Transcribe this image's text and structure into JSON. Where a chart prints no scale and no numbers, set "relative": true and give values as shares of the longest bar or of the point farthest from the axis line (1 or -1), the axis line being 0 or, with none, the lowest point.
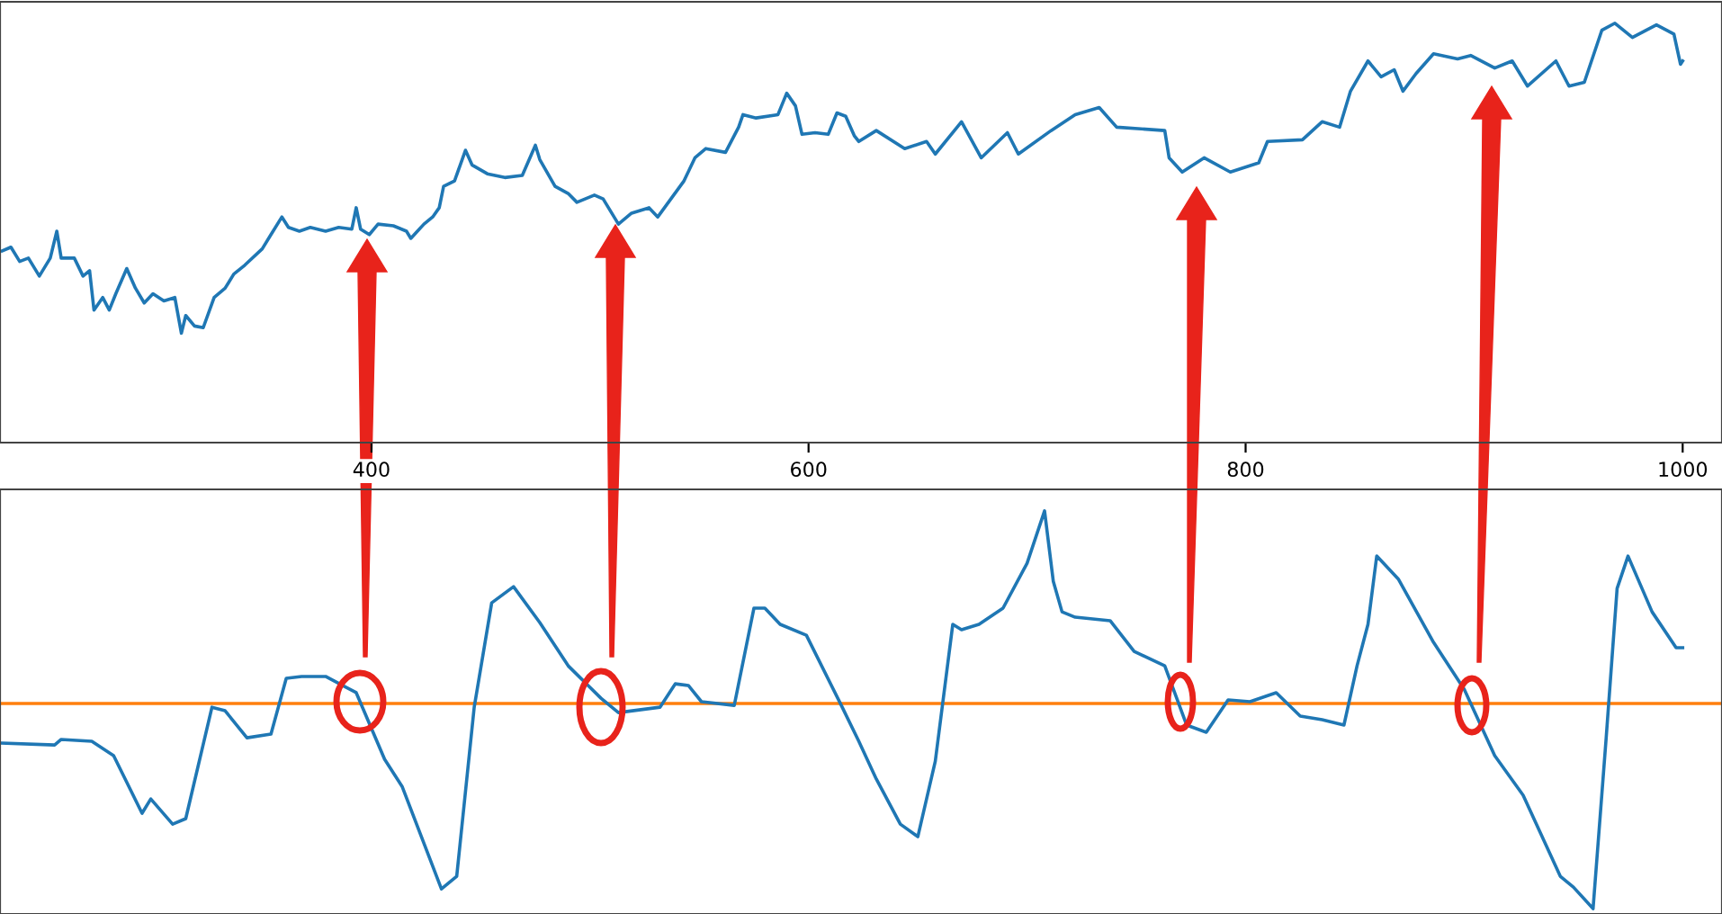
{
  "chart_data": [
    {
      "type": "line",
      "relative": true,
      "xlim": [
        230,
        1018
      ],
      "xticks": [
        400,
        600,
        800,
        1000
      ],
      "tick_labels": "x",
      "series": [
        {
          "color": "#1f77b4",
          "x": [
            231,
            235,
            239,
            243,
            248,
            253,
            256,
            258,
            264,
            268,
            271,
            273,
            277,
            280,
            283,
            288,
            292,
            296,
            300,
            305,
            310,
            313,
            315,
            319,
            323,
            328,
            333,
            337,
            342,
            350,
            354,
            359,
            362,
            367,
            372,
            379,
            385,
            391,
            393,
            395,
            399,
            403,
            410,
            416,
            418,
            424,
            428,
            431,
            433,
            438,
            443,
            446,
            453,
            461,
            469,
            475,
            477,
            484,
            490,
            494,
            502,
            506,
            513,
            519,
            527,
            531,
            537,
            543,
            548,
            553,
            562,
            568,
            570,
            576,
            586,
            590,
            594,
            597,
            603,
            609,
            613,
            617,
            621,
            623,
            631,
            644,
            654,
            658,
            670,
            679,
            691,
            696,
            711,
            722,
            733,
            741,
            763,
            765,
            771,
            781,
            793,
            806,
            810,
            826,
            835,
            843,
            848,
            856,
            862,
            868,
            872,
            878,
            886,
            897,
            903,
            914,
            922,
            929,
            942,
            948,
            955,
            963,
            969,
            977,
            988,
            996,
            999,
            1000
          ],
          "values": [
            0.457,
            0.466,
            0.432,
            0.44,
            0.397,
            0.44,
            0.504,
            0.44,
            0.44,
            0.397,
            0.41,
            0.316,
            0.346,
            0.316,
            0.355,
            0.415,
            0.368,
            0.333,
            0.355,
            0.338,
            0.346,
            0.261,
            0.303,
            0.278,
            0.274,
            0.346,
            0.368,
            0.402,
            0.423,
            0.462,
            0.496,
            0.538,
            0.513,
            0.504,
            0.513,
            0.504,
            0.513,
            0.509,
            0.56,
            0.509,
            0.496,
            0.521,
            0.517,
            0.504,
            0.487,
            0.521,
            0.538,
            0.56,
            0.611,
            0.624,
            0.697,
            0.662,
            0.641,
            0.632,
            0.637,
            0.709,
            0.675,
            0.611,
            0.594,
            0.573,
            0.59,
            0.581,
            0.521,
            0.547,
            0.56,
            0.538,
            0.581,
            0.624,
            0.679,
            0.701,
            0.692,
            0.752,
            0.782,
            0.774,
            0.782,
            0.833,
            0.803,
            0.735,
            0.739,
            0.735,
            0.786,
            0.778,
            0.731,
            0.718,
            0.744,
            0.701,
            0.718,
            0.688,
            0.765,
            0.679,
            0.739,
            0.688,
            0.744,
            0.782,
            0.799,
            0.752,
            0.744,
            0.679,
            0.645,
            0.679,
            0.645,
            0.667,
            0.718,
            0.722,
            0.765,
            0.752,
            0.838,
            0.91,
            0.872,
            0.889,
            0.838,
            0.88,
            0.927,
            0.915,
            0.923,
            0.893,
            0.91,
            0.85,
            0.91,
            0.85,
            0.859,
            0.983,
            1.0,
            0.966,
            0.996,
            0.974,
            0.902,
            0.91
          ]
        }
      ]
    },
    {
      "type": "line",
      "relative": true,
      "xlim": [
        230,
        1018
      ],
      "tick_labels": false,
      "ref_lines": [
        {
          "axis": "y",
          "value": 0,
          "color": "#ff7f0e"
        }
      ],
      "series": [
        {
          "color": "#1f77b4",
          "x": [
            231,
            255,
            258,
            272,
            282,
            295,
            299,
            309,
            315,
            327,
            333,
            343,
            354,
            361,
            368,
            379,
            393,
            406,
            414,
            432,
            439,
            447,
            455,
            465,
            477,
            490,
            505,
            513,
            532,
            539,
            545,
            551,
            566,
            575,
            580,
            587,
            599,
            615,
            623,
            631,
            642,
            650,
            658,
            666,
            670,
            678,
            689,
            700,
            708,
            712,
            716,
            722,
            738,
            749,
            763,
            773,
            782,
            792,
            802,
            814,
            825,
            835,
            845,
            851,
            856,
            860,
            870,
            886,
            900,
            914,
            927,
            944,
            950,
            959,
            965,
            970,
            975,
            986,
            997,
            1000
          ],
          "values": [
            -0.193,
            -0.202,
            -0.175,
            -0.184,
            -0.254,
            -0.535,
            -0.465,
            -0.588,
            -0.561,
            -0.018,
            -0.035,
            -0.167,
            -0.149,
            0.123,
            0.132,
            0.132,
            0.053,
            -0.272,
            -0.404,
            -0.904,
            -0.842,
            -0.018,
            0.491,
            0.57,
            0.395,
            0.184,
            0.026,
            -0.044,
            -0.018,
            0.096,
            0.088,
            0.009,
            -0.009,
            0.465,
            0.465,
            0.386,
            0.333,
            -0.009,
            -0.184,
            -0.368,
            -0.588,
            -0.649,
            -0.281,
            0.386,
            0.36,
            0.386,
            0.465,
            0.684,
            0.939,
            0.596,
            0.447,
            0.421,
            0.404,
            0.254,
            0.184,
            -0.105,
            -0.14,
            0.018,
            0.009,
            0.053,
            -0.061,
            -0.079,
            -0.105,
            0.184,
            0.386,
            0.719,
            0.605,
            0.298,
            0.07,
            -0.254,
            -0.447,
            -0.842,
            -0.895,
            -1.0,
            -0.167,
            0.561,
            0.719,
            0.447,
            0.272,
            0.272
          ]
        }
      ]
    }
  ]
}
